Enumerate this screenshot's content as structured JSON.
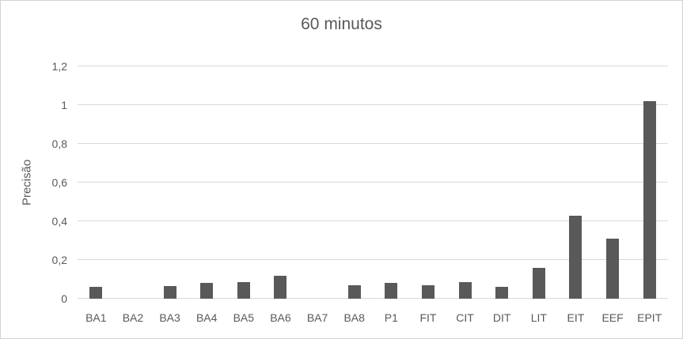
{
  "colors": {
    "bar": "#595959",
    "gridline": "#d9d9d9",
    "text": "#595959",
    "border": "#d2d2d2"
  },
  "chart_data": {
    "type": "bar",
    "title": "60 minutos",
    "xlabel": "",
    "ylabel": "Precisão",
    "categories": [
      "BA1",
      "BA2",
      "BA3",
      "BA4",
      "BA5",
      "BA6",
      "BA7",
      "BA8",
      "P1",
      "FIT",
      "CIT",
      "DIT",
      "LIT",
      "EIT",
      "EEF",
      "EPIT"
    ],
    "values": [
      0.06,
      0,
      0.065,
      0.08,
      0.085,
      0.12,
      0,
      0.07,
      0.08,
      0.07,
      0.085,
      0.06,
      0.16,
      0.43,
      0.31,
      1.02
    ],
    "ylim": [
      0,
      1.2
    ],
    "yticks": [
      0,
      0.2,
      0.4,
      0.6,
      0.8,
      1,
      1.2
    ],
    "ytick_labels": [
      "0",
      "0,2",
      "0,4",
      "0,6",
      "0,8",
      "1",
      "1,2"
    ],
    "grid": true,
    "legend": false,
    "bar_color": "#595959"
  }
}
